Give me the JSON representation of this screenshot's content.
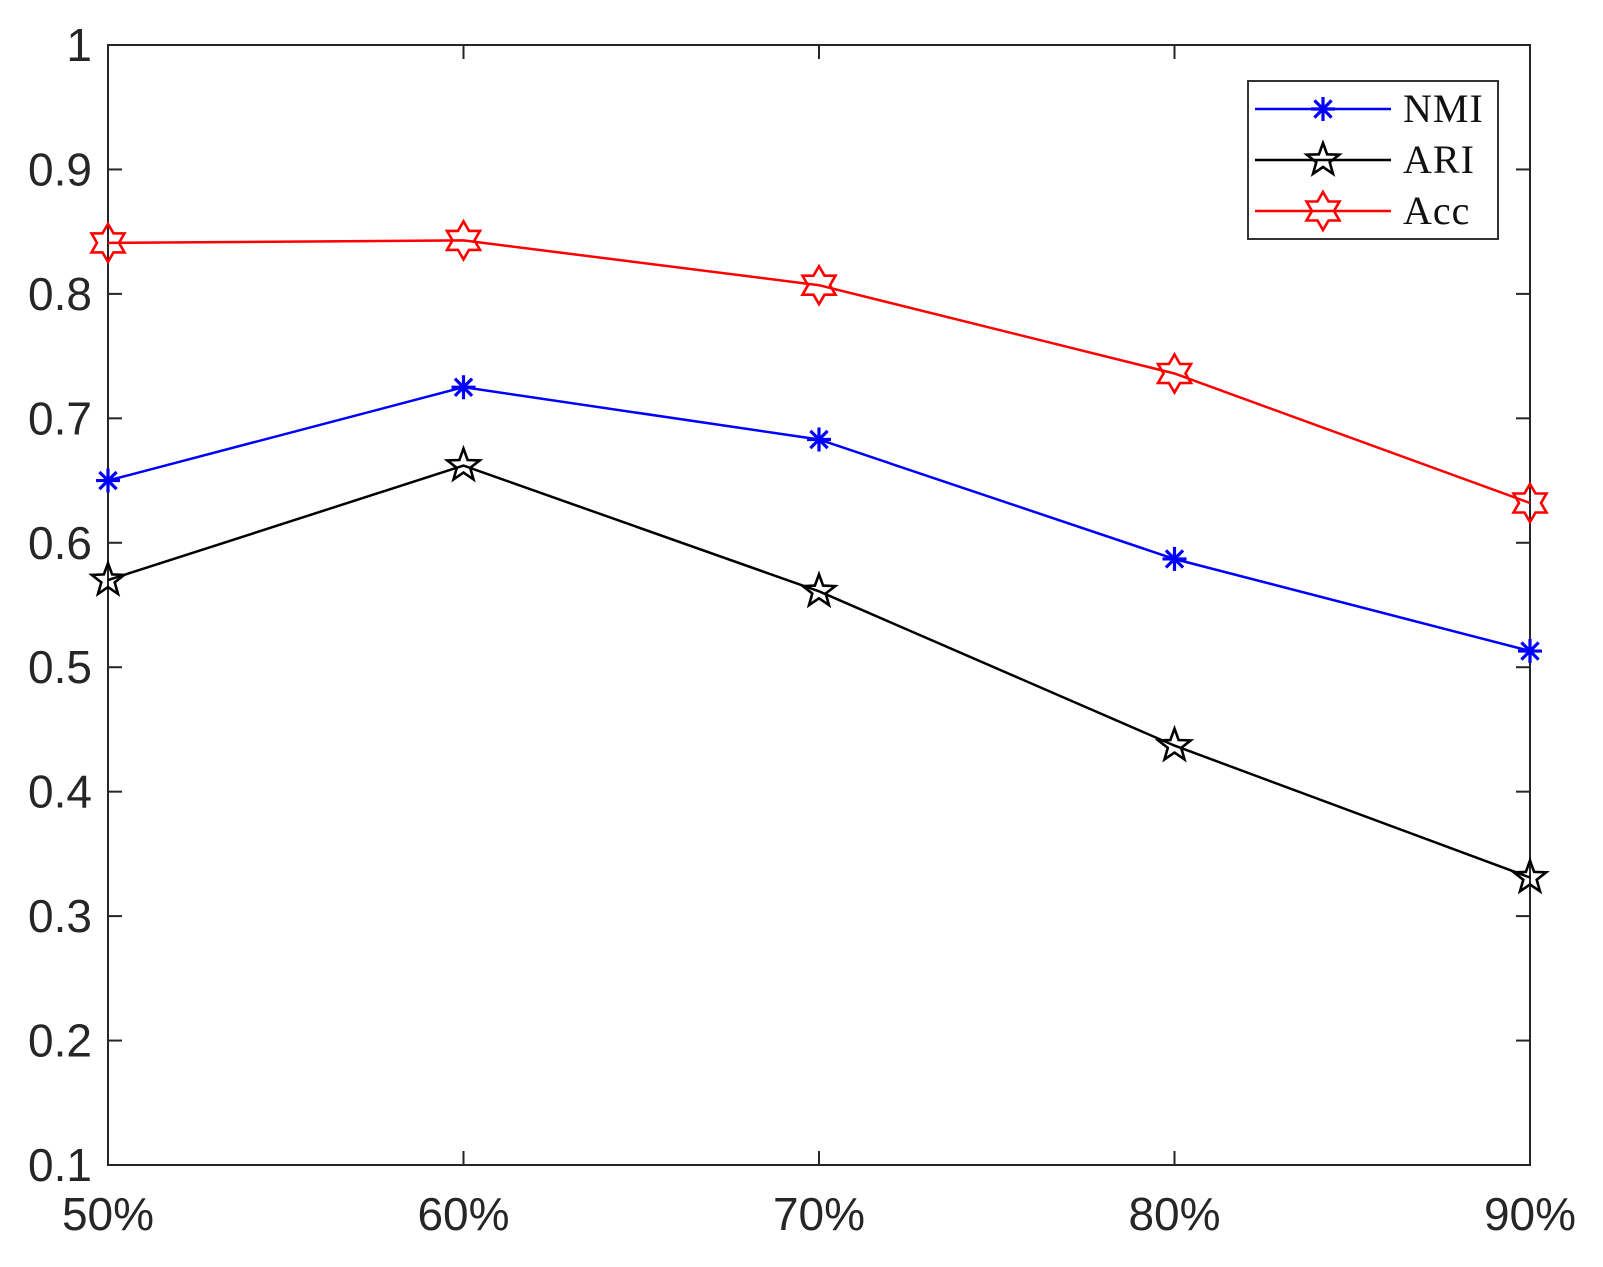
{
  "chart_data": {
    "type": "line",
    "categories": [
      "50%",
      "60%",
      "70%",
      "80%",
      "90%"
    ],
    "series": [
      {
        "name": "NMI",
        "color": "#0000ff",
        "marker": "asterisk",
        "values": [
          0.65,
          0.725,
          0.683,
          0.587,
          0.513
        ]
      },
      {
        "name": "ARI",
        "color": "#000000",
        "marker": "pentagram",
        "values": [
          0.57,
          0.662,
          0.561,
          0.437,
          0.331
        ]
      },
      {
        "name": "Acc",
        "color": "#ff0000",
        "marker": "hexagram",
        "values": [
          0.841,
          0.843,
          0.807,
          0.736,
          0.632
        ]
      }
    ],
    "ylim": [
      0.1,
      1.0
    ],
    "y_tick_values": [
      0.1,
      0.2,
      0.3,
      0.4,
      0.5,
      0.6,
      0.7,
      0.8,
      0.9,
      1
    ],
    "y_tick_labels": [
      "0.1",
      "0.2",
      "0.3",
      "0.4",
      "0.5",
      "0.6",
      "0.7",
      "0.8",
      "0.9",
      "1"
    ],
    "x_tick_labels": [
      "50%",
      "60%",
      "70%",
      "80%",
      "90%"
    ],
    "grid": false,
    "legend_position": "top-right",
    "axis_color": "#262626",
    "tick_label_color": "#262626",
    "legend_text_color": "#111111"
  }
}
